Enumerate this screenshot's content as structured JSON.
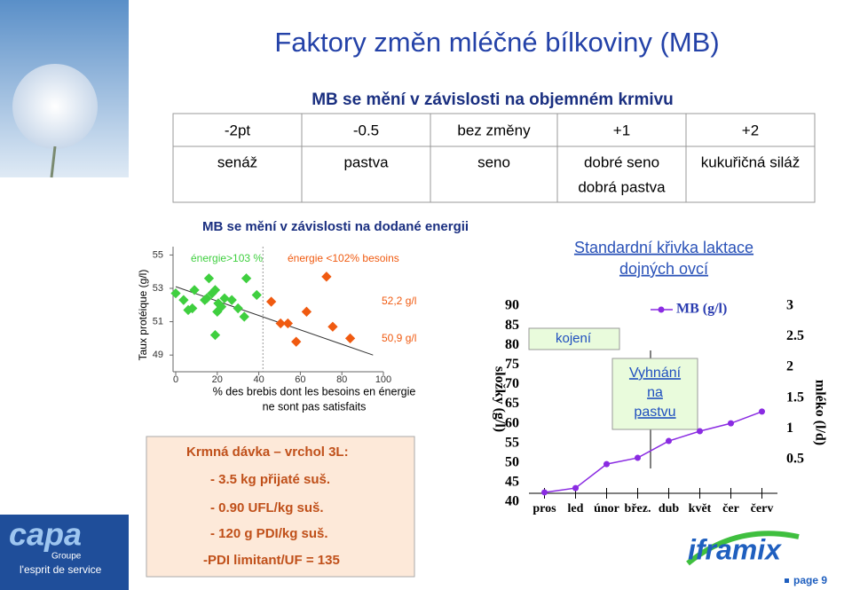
{
  "header": {
    "title": "Faktory změn mléčné bílkoviny (MB)",
    "subtitle": "MB se mění v závislosti na objemném krmivu"
  },
  "table": {
    "rows": [
      [
        "-2pt",
        "-0.5",
        "bez změny",
        "+1",
        "+2"
      ],
      [
        [
          "senáž"
        ],
        [
          "pastva"
        ],
        [
          "seno"
        ],
        [
          "dobré seno",
          "dobrá pastva"
        ],
        [
          "kukuřičná siláž"
        ]
      ]
    ]
  },
  "section": "MB se mění v závislosti na dodané energii",
  "chart_data": [
    {
      "type": "scatter",
      "ylabel": "Taux protéique (g/l)",
      "xlabel": [
        "% des brebis dont les besoins en énergie",
        "ne sont pas satisfaits"
      ],
      "xlim": [
        0,
        100
      ],
      "xticks": [
        0,
        20,
        40,
        60,
        80,
        100
      ],
      "ylim": [
        48,
        55.5
      ],
      "yticks": [
        49,
        51,
        53,
        55
      ],
      "series": [
        {
          "name": "énergie>103 %",
          "color": "#3fcf3f",
          "x": [
            0,
            3.8,
            6,
            8,
            9,
            15,
            16,
            14,
            17.5,
            19,
            20.5,
            20,
            22,
            23.5,
            27,
            30,
            33,
            19,
            39,
            34
          ],
          "y": [
            52.7,
            52.3,
            51.7,
            51.8,
            52.9,
            52.4,
            53.6,
            52.3,
            52.7,
            52.9,
            52.1,
            51.6,
            51.9,
            52.4,
            52.3,
            51.8,
            51.3,
            50.2,
            52.6,
            53.6
          ]
        },
        {
          "name": "énergie <102% besoins",
          "color": "#f05a10",
          "x": [
            46,
            50.5,
            54,
            58,
            63,
            72.6,
            75.6,
            84
          ],
          "y": [
            52.2,
            50.9,
            50.9,
            49.8,
            51.6,
            53.7,
            50.7,
            50
          ]
        }
      ],
      "trend": {
        "x": [
          0,
          95
        ],
        "y": [
          53.1,
          49.0
        ]
      },
      "threshold_x": 42,
      "annotations": [
        "52,2 g/l",
        "50,9 g/l"
      ]
    },
    {
      "type": "line",
      "title": [
        "Standardní křivka laktace",
        "dojných ovcí"
      ],
      "ylabel": "složky (g/l)",
      "y2label": "mléko (l/d)",
      "categories": [
        "pros",
        "led",
        "únor",
        "břez.",
        "dub",
        "květ",
        "čer",
        "červ"
      ],
      "ylim": [
        40,
        90
      ],
      "yticks": [
        40,
        45,
        50,
        55,
        60,
        65,
        70,
        75,
        80,
        85,
        90
      ],
      "y2lim": [
        -0.2,
        3
      ],
      "y2ticks": [
        0.5,
        1,
        1.5,
        2,
        2.5,
        3
      ],
      "series": [
        {
          "name": "MB (g/l)",
          "color": "#8a2be2",
          "values": [
            42.5,
            43.6,
            49.7,
            51.3,
            55.6,
            58.1,
            60.1,
            63.1
          ]
        }
      ],
      "annotations": [
        "kojení",
        [
          "Vyhnání",
          "na",
          "pastvu"
        ]
      ]
    }
  ],
  "box": {
    "title": "Krmná dávka – vrchol 3L:",
    "items": [
      "- 3.5 kg přijaté suš.",
      "- 0.90 UFL/kg suš.",
      "- 120 g PDI/kg suš.",
      "-PDI limitant/UF = 135"
    ]
  },
  "logos": {
    "left": [
      "capa",
      "Groupe",
      "l'esprit de service"
    ],
    "right": "iframix"
  },
  "footer": "page 9"
}
